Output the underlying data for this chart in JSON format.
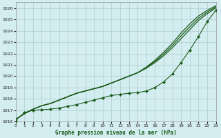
{
  "title": "Graphe pression niveau de la mer (hPa)",
  "background_color": "#d4edf0",
  "grid_color": "#b0cccc",
  "line_color": "#1a5c1a",
  "xlim": [
    0,
    23
  ],
  "ylim": [
    1016,
    1026.5
  ],
  "yticks": [
    1016,
    1017,
    1018,
    1019,
    1020,
    1021,
    1022,
    1023,
    1024,
    1025,
    1026
  ],
  "xticks": [
    0,
    1,
    2,
    3,
    4,
    5,
    6,
    7,
    8,
    9,
    10,
    11,
    12,
    13,
    14,
    15,
    16,
    17,
    18,
    19,
    20,
    21,
    22,
    23
  ],
  "smooth1": [
    1016.2,
    1016.7,
    1017.1,
    1017.4,
    1017.6,
    1017.9,
    1018.2,
    1018.5,
    1018.7,
    1018.9,
    1019.1,
    1019.4,
    1019.7,
    1020.0,
    1020.3,
    1020.7,
    1021.2,
    1021.8,
    1022.5,
    1023.3,
    1024.1,
    1024.9,
    1025.5,
    1026.0
  ],
  "smooth2": [
    1016.2,
    1016.7,
    1017.1,
    1017.4,
    1017.6,
    1017.9,
    1018.2,
    1018.5,
    1018.7,
    1018.9,
    1019.1,
    1019.4,
    1019.7,
    1020.0,
    1020.3,
    1020.8,
    1021.4,
    1022.1,
    1022.9,
    1023.8,
    1024.6,
    1025.3,
    1025.8,
    1026.2
  ],
  "smooth3": [
    1016.2,
    1016.7,
    1017.1,
    1017.4,
    1017.6,
    1017.9,
    1018.2,
    1018.5,
    1018.7,
    1018.9,
    1019.1,
    1019.4,
    1019.7,
    1020.0,
    1020.3,
    1020.75,
    1021.3,
    1021.95,
    1022.7,
    1023.55,
    1024.35,
    1025.1,
    1025.65,
    1026.1
  ],
  "marker_line": [
    1016.1,
    1016.8,
    1017.0,
    1017.05,
    1017.1,
    1017.2,
    1017.35,
    1017.5,
    1017.7,
    1017.9,
    1018.1,
    1018.3,
    1018.4,
    1018.5,
    1018.55,
    1018.7,
    1019.0,
    1019.5,
    1020.2,
    1021.2,
    1022.3,
    1023.5,
    1024.8,
    1025.8
  ]
}
